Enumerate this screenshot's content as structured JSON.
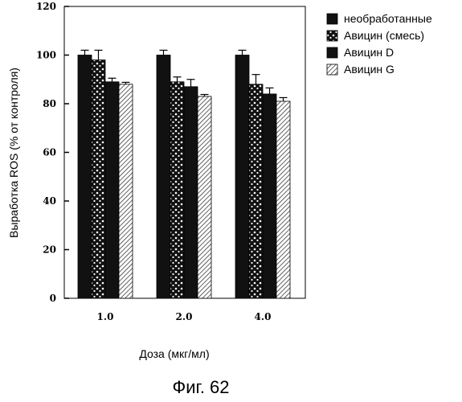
{
  "chart_data": {
    "type": "bar",
    "categories": [
      "1.0",
      "2.0",
      "4.0"
    ],
    "series": [
      {
        "name": "необработанные",
        "values": [
          100,
          100,
          100
        ],
        "errors": [
          2,
          2,
          2
        ],
        "pattern": "solid"
      },
      {
        "name": "Авицин (смесь)",
        "values": [
          98,
          89,
          88
        ],
        "errors": [
          4,
          2,
          4
        ],
        "pattern": "dots"
      },
      {
        "name": "Авицин D",
        "values": [
          89,
          87,
          84
        ],
        "errors": [
          1.5,
          3,
          2.5
        ],
        "pattern": "solid"
      },
      {
        "name": "Авицин G",
        "values": [
          88,
          83,
          81
        ],
        "errors": [
          0.8,
          0.8,
          1.5
        ],
        "pattern": "hatch"
      }
    ],
    "yticks": [
      0,
      20,
      40,
      60,
      80,
      100,
      120
    ],
    "ylim": [
      0,
      120
    ],
    "xlabel": "Доза (мкг/мл)",
    "ylabel": "Выработка ROS (% от контроля)",
    "legend_position": "top-right",
    "grid": false,
    "caption": "Фиг. 62"
  }
}
